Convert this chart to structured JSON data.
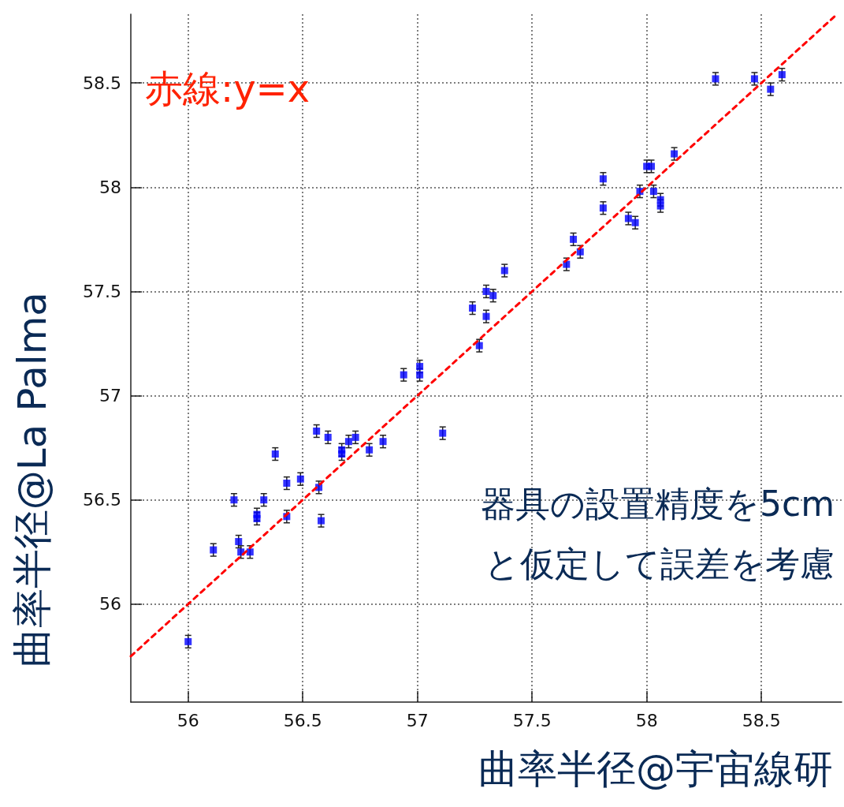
{
  "chart_data": {
    "type": "scatter",
    "xlabel": "曲率半径@宇宙線研",
    "ylabel": "曲率半径@La Palma",
    "annotations": [
      "赤線:y=x",
      "器具の設置精度を5cm\nと仮定して誤差を考慮"
    ],
    "xlim": [
      55.75,
      58.85
    ],
    "ylim": [
      55.53,
      58.83
    ],
    "xticks": [
      56,
      56.5,
      57,
      57.5,
      58,
      58.5
    ],
    "yticks": [
      56,
      56.5,
      57,
      57.5,
      58,
      58.5
    ],
    "grid": true,
    "marker": "square",
    "series": [
      {
        "color": "#0000ff",
        "x": [
          56.0,
          56.11,
          56.2,
          56.22,
          56.23,
          56.27,
          56.3,
          56.3,
          56.33,
          56.38,
          56.43,
          56.43,
          56.49,
          56.56,
          56.57,
          56.58,
          56.61,
          56.67,
          56.67,
          56.7,
          56.73,
          56.79,
          56.85,
          56.94,
          57.01,
          57.01,
          57.11,
          57.24,
          57.27,
          57.3,
          57.3,
          57.33,
          57.38,
          57.65,
          57.68,
          57.71,
          57.81,
          57.81,
          57.92,
          57.95,
          57.97,
          58.0,
          58.02,
          58.03,
          58.06,
          58.06,
          58.12,
          58.3,
          58.47,
          58.54,
          58.59
        ],
        "values": [
          55.82,
          56.26,
          56.5,
          56.3,
          56.25,
          56.25,
          56.43,
          56.41,
          56.5,
          56.72,
          56.58,
          56.42,
          56.6,
          56.83,
          56.56,
          56.4,
          56.8,
          56.74,
          56.72,
          56.78,
          56.8,
          56.74,
          56.78,
          57.1,
          57.14,
          57.1,
          56.82,
          57.42,
          57.24,
          57.38,
          57.5,
          57.48,
          57.6,
          57.63,
          57.75,
          57.69,
          58.04,
          57.9,
          57.85,
          57.83,
          57.98,
          58.1,
          58.1,
          57.98,
          57.94,
          57.91,
          58.16,
          58.52,
          58.52,
          58.47,
          58.54
        ],
        "errors": [
          0.03,
          0.03,
          0.03,
          0.03,
          0.03,
          0.03,
          0.03,
          0.03,
          0.03,
          0.03,
          0.03,
          0.03,
          0.03,
          0.03,
          0.03,
          0.03,
          0.03,
          0.03,
          0.03,
          0.03,
          0.03,
          0.03,
          0.03,
          0.03,
          0.03,
          0.03,
          0.03,
          0.03,
          0.03,
          0.03,
          0.03,
          0.03,
          0.03,
          0.03,
          0.03,
          0.03,
          0.03,
          0.03,
          0.03,
          0.03,
          0.03,
          0.03,
          0.03,
          0.03,
          0.03,
          0.03,
          0.03,
          0.03,
          0.03,
          0.03,
          0.03
        ]
      },
      {
        "type": "line",
        "color": "#ff0000",
        "line_style": "dashed",
        "marker": "none",
        "x": [
          55.75,
          58.83
        ],
        "values": [
          55.75,
          58.83
        ]
      }
    ]
  }
}
